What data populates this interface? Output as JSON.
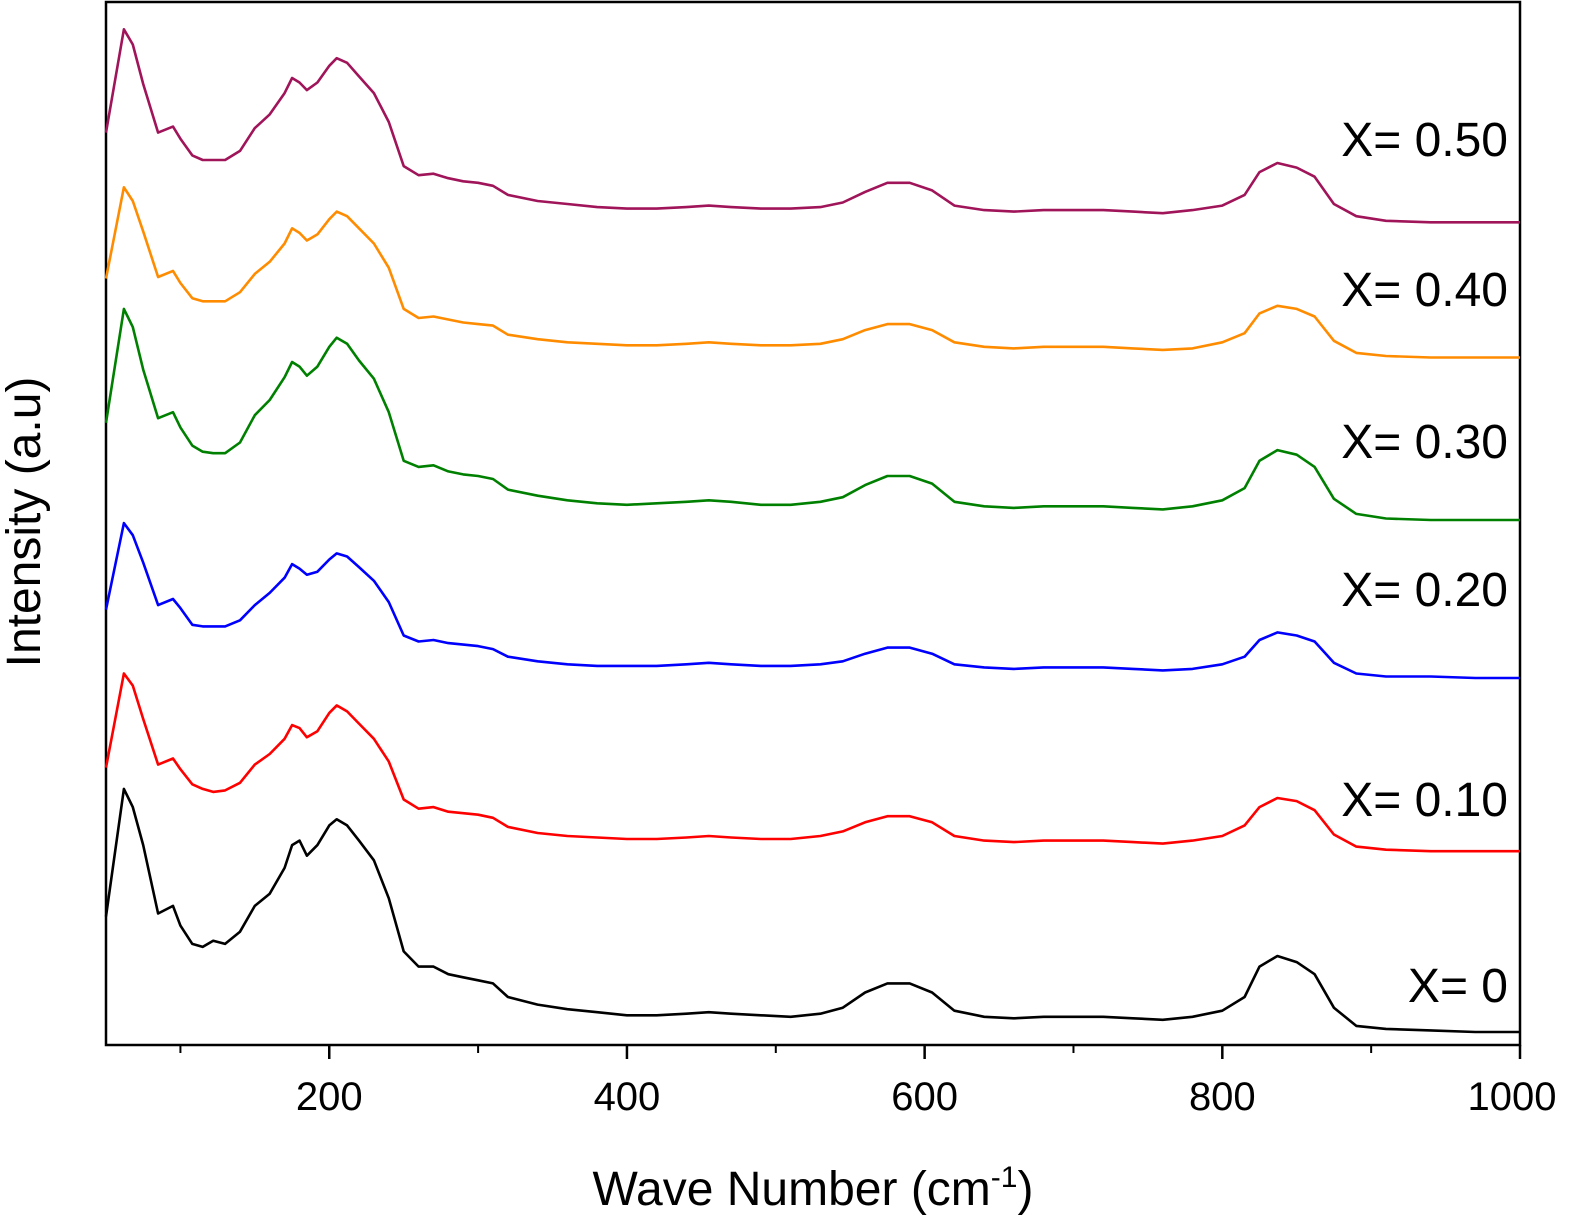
{
  "chart_data": {
    "type": "line",
    "title": "",
    "xlabel": "Wave Number (cm",
    "xlabel_superscript": "-1",
    "xlabel_suffix": ")",
    "ylabel": "Intensity (a.u)",
    "xlim": [
      50,
      1000
    ],
    "ylim": [
      0,
      6.8
    ],
    "x_ticks": [
      200,
      400,
      600,
      800,
      1000
    ],
    "x_minor_ticks": [
      100,
      300,
      500,
      700,
      900
    ],
    "y_tick_labels": "none",
    "grid": false,
    "legend": "inline labels at right",
    "x": [
      50,
      62,
      68,
      75,
      85,
      95,
      100,
      108,
      115,
      122,
      130,
      140,
      150,
      160,
      170,
      175,
      180,
      185,
      192,
      200,
      205,
      212,
      220,
      230,
      240,
      250,
      260,
      270,
      280,
      290,
      300,
      310,
      320,
      340,
      360,
      380,
      400,
      420,
      440,
      455,
      470,
      490,
      510,
      530,
      545,
      560,
      575,
      590,
      605,
      620,
      640,
      660,
      680,
      700,
      720,
      740,
      760,
      780,
      800,
      815,
      825,
      837,
      850,
      862,
      875,
      890,
      910,
      940,
      970,
      1000
    ],
    "series": [
      {
        "name": "X= 0",
        "color": "#000000",
        "offset": 0.0,
        "values": [
          0.78,
          1.62,
          1.5,
          1.25,
          0.8,
          0.85,
          0.72,
          0.6,
          0.58,
          0.62,
          0.6,
          0.68,
          0.85,
          0.93,
          1.1,
          1.25,
          1.28,
          1.18,
          1.25,
          1.38,
          1.42,
          1.38,
          1.28,
          1.15,
          0.9,
          0.55,
          0.45,
          0.45,
          0.4,
          0.38,
          0.36,
          0.34,
          0.25,
          0.2,
          0.17,
          0.15,
          0.13,
          0.13,
          0.14,
          0.15,
          0.14,
          0.13,
          0.12,
          0.14,
          0.18,
          0.28,
          0.34,
          0.34,
          0.28,
          0.16,
          0.12,
          0.11,
          0.12,
          0.12,
          0.12,
          0.11,
          0.1,
          0.12,
          0.16,
          0.25,
          0.45,
          0.52,
          0.48,
          0.4,
          0.18,
          0.06,
          0.04,
          0.03,
          0.02,
          0.02
        ]
      },
      {
        "name": "X= 0.10",
        "color": "#ff0000",
        "offset": 1.2,
        "values": [
          0.56,
          1.18,
          1.1,
          0.88,
          0.58,
          0.62,
          0.55,
          0.45,
          0.42,
          0.4,
          0.41,
          0.46,
          0.58,
          0.65,
          0.75,
          0.84,
          0.82,
          0.76,
          0.8,
          0.92,
          0.97,
          0.93,
          0.85,
          0.75,
          0.6,
          0.35,
          0.29,
          0.3,
          0.27,
          0.26,
          0.25,
          0.23,
          0.17,
          0.13,
          0.11,
          0.1,
          0.09,
          0.09,
          0.1,
          0.11,
          0.1,
          0.09,
          0.09,
          0.11,
          0.14,
          0.2,
          0.24,
          0.24,
          0.2,
          0.11,
          0.08,
          0.07,
          0.08,
          0.08,
          0.08,
          0.07,
          0.06,
          0.08,
          0.11,
          0.18,
          0.3,
          0.36,
          0.34,
          0.28,
          0.12,
          0.04,
          0.02,
          0.01,
          0.01,
          0.01
        ]
      },
      {
        "name": "X= 0.20",
        "color": "#0000ff",
        "offset": 2.35,
        "values": [
          0.45,
          1.02,
          0.94,
          0.76,
          0.48,
          0.52,
          0.46,
          0.35,
          0.34,
          0.34,
          0.34,
          0.38,
          0.48,
          0.56,
          0.66,
          0.75,
          0.72,
          0.68,
          0.7,
          0.78,
          0.82,
          0.8,
          0.73,
          0.64,
          0.5,
          0.28,
          0.24,
          0.25,
          0.23,
          0.22,
          0.21,
          0.19,
          0.14,
          0.11,
          0.09,
          0.08,
          0.08,
          0.08,
          0.09,
          0.1,
          0.09,
          0.08,
          0.08,
          0.09,
          0.11,
          0.16,
          0.2,
          0.2,
          0.16,
          0.09,
          0.07,
          0.06,
          0.07,
          0.07,
          0.07,
          0.06,
          0.05,
          0.06,
          0.09,
          0.14,
          0.25,
          0.3,
          0.28,
          0.24,
          0.1,
          0.03,
          0.01,
          0.01,
          0.0,
          0.0
        ]
      },
      {
        "name": "X= 0.30",
        "color": "#008000",
        "offset": 3.38,
        "values": [
          0.65,
          1.4,
          1.28,
          1.0,
          0.68,
          0.72,
          0.62,
          0.5,
          0.46,
          0.45,
          0.45,
          0.52,
          0.7,
          0.8,
          0.95,
          1.05,
          1.02,
          0.96,
          1.02,
          1.15,
          1.21,
          1.17,
          1.06,
          0.94,
          0.72,
          0.4,
          0.36,
          0.37,
          0.33,
          0.31,
          0.3,
          0.28,
          0.21,
          0.17,
          0.14,
          0.12,
          0.11,
          0.12,
          0.13,
          0.14,
          0.13,
          0.11,
          0.11,
          0.13,
          0.16,
          0.24,
          0.3,
          0.3,
          0.25,
          0.13,
          0.1,
          0.09,
          0.1,
          0.1,
          0.1,
          0.09,
          0.08,
          0.1,
          0.14,
          0.22,
          0.4,
          0.47,
          0.44,
          0.36,
          0.15,
          0.05,
          0.02,
          0.01,
          0.01,
          0.01
        ]
      },
      {
        "name": "X= 0.40",
        "color": "#ff8c00",
        "offset": 4.45,
        "values": [
          0.53,
          1.13,
          1.04,
          0.84,
          0.54,
          0.58,
          0.5,
          0.4,
          0.38,
          0.38,
          0.38,
          0.44,
          0.56,
          0.64,
          0.76,
          0.86,
          0.83,
          0.78,
          0.82,
          0.92,
          0.97,
          0.94,
          0.86,
          0.76,
          0.6,
          0.33,
          0.27,
          0.28,
          0.26,
          0.24,
          0.23,
          0.22,
          0.16,
          0.13,
          0.11,
          0.1,
          0.09,
          0.09,
          0.1,
          0.11,
          0.1,
          0.09,
          0.09,
          0.1,
          0.13,
          0.19,
          0.23,
          0.23,
          0.19,
          0.11,
          0.08,
          0.07,
          0.08,
          0.08,
          0.08,
          0.07,
          0.06,
          0.07,
          0.11,
          0.17,
          0.3,
          0.35,
          0.33,
          0.28,
          0.12,
          0.04,
          0.02,
          0.01,
          0.01,
          0.01
        ]
      },
      {
        "name": "X= 0.50",
        "color": "#a0145a",
        "offset": 5.34,
        "values": [
          0.6,
          1.28,
          1.18,
          0.92,
          0.6,
          0.64,
          0.56,
          0.45,
          0.42,
          0.42,
          0.42,
          0.48,
          0.63,
          0.72,
          0.86,
          0.96,
          0.93,
          0.88,
          0.93,
          1.04,
          1.09,
          1.06,
          0.97,
          0.86,
          0.67,
          0.38,
          0.32,
          0.33,
          0.3,
          0.28,
          0.27,
          0.25,
          0.19,
          0.15,
          0.13,
          0.11,
          0.1,
          0.1,
          0.11,
          0.12,
          0.11,
          0.1,
          0.1,
          0.11,
          0.14,
          0.21,
          0.27,
          0.27,
          0.22,
          0.12,
          0.09,
          0.08,
          0.09,
          0.09,
          0.09,
          0.08,
          0.07,
          0.09,
          0.12,
          0.19,
          0.34,
          0.4,
          0.37,
          0.31,
          0.13,
          0.05,
          0.02,
          0.01,
          0.01,
          0.01
        ]
      }
    ]
  },
  "labels": {
    "x0": "X= 0",
    "x10": "X= 0.10",
    "x20": "X= 0.20",
    "x30": "X= 0.30",
    "x40": "X= 0.40",
    "x50": "X= 0.50"
  }
}
